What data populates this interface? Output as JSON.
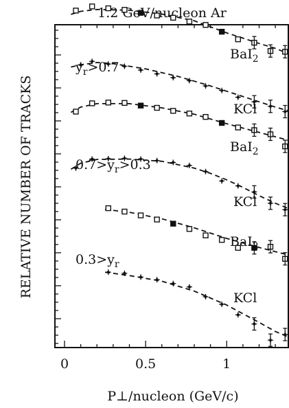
{
  "chart_data": {
    "type": "scatter",
    "title": "1.2 GeV/nucleon Ar",
    "xlabel": "P⊥/nucleon (GeV/c)",
    "ylabel": "RELATIVE NUMBER OF TRACKS",
    "xlim": [
      0,
      1.4
    ],
    "x_ticks": [
      "0",
      "0.5",
      "1"
    ],
    "x_tick_values": [
      0,
      0.5,
      1
    ],
    "y_scale": "log, relative, offset per series",
    "grid": false,
    "series": [
      {
        "name": "BaI2",
        "rapidity_cut": "yr>0.7",
        "marker": "square",
        "points": [
          {
            "x": 0.07,
            "y": 0.72
          },
          {
            "x": 0.17,
            "y": 0.83
          },
          {
            "x": 0.27,
            "y": 0.78
          },
          {
            "x": 0.37,
            "y": 0.74
          },
          {
            "x": 0.47,
            "y": 0.66
          },
          {
            "x": 0.57,
            "y": 0.59
          },
          {
            "x": 0.67,
            "y": 0.53
          },
          {
            "x": 0.77,
            "y": 0.43
          },
          {
            "x": 0.87,
            "y": 0.34
          },
          {
            "x": 0.97,
            "y": 0.16
          },
          {
            "x": 1.07,
            "y": -0.04
          },
          {
            "x": 1.17,
            "y": -0.13
          },
          {
            "x": 1.27,
            "y": -0.35
          },
          {
            "x": 1.36,
            "y": -0.37
          }
        ],
        "curve": [
          [
            0.04,
            0.62
          ],
          [
            0.1,
            0.7
          ],
          [
            0.2,
            0.75
          ],
          [
            0.4,
            0.73
          ],
          [
            0.6,
            0.63
          ],
          [
            0.8,
            0.45
          ],
          [
            1.0,
            0.13
          ],
          [
            1.1,
            -0.01
          ],
          [
            1.2,
            -0.15
          ],
          [
            1.3,
            -0.28
          ],
          [
            1.4,
            -0.45
          ]
        ]
      },
      {
        "name": "KCl",
        "rapidity_cut": "yr>0.7",
        "marker": "cross",
        "points": [
          {
            "x": 0.1,
            "y": 0.74
          },
          {
            "x": 0.17,
            "y": 0.83
          },
          {
            "x": 0.27,
            "y": 0.76
          },
          {
            "x": 0.37,
            "y": 0.7
          },
          {
            "x": 0.47,
            "y": 0.6
          },
          {
            "x": 0.57,
            "y": 0.5
          },
          {
            "x": 0.67,
            "y": 0.4
          },
          {
            "x": 0.77,
            "y": 0.32
          },
          {
            "x": 0.87,
            "y": 0.18
          },
          {
            "x": 0.97,
            "y": 0.06
          },
          {
            "x": 1.07,
            "y": -0.12
          },
          {
            "x": 1.17,
            "y": -0.24
          },
          {
            "x": 1.27,
            "y": -0.36
          },
          {
            "x": 1.36,
            "y": -0.5
          }
        ],
        "curve": [
          [
            0.04,
            0.68
          ],
          [
            0.1,
            0.74
          ],
          [
            0.2,
            0.8
          ],
          [
            0.3,
            0.77
          ],
          [
            0.5,
            0.63
          ],
          [
            0.7,
            0.43
          ],
          [
            0.9,
            0.18
          ],
          [
            1.0,
            0.04
          ],
          [
            1.1,
            -0.1
          ],
          [
            1.2,
            -0.24
          ],
          [
            1.3,
            -0.38
          ],
          [
            1.4,
            -0.5
          ]
        ]
      },
      {
        "name": "BaI2",
        "rapidity_cut": "0.7>yr>0.3",
        "marker": "square",
        "points": [
          {
            "x": 0.07,
            "y": 0.5
          },
          {
            "x": 0.17,
            "y": 0.72
          },
          {
            "x": 0.27,
            "y": 0.74
          },
          {
            "x": 0.37,
            "y": 0.73
          },
          {
            "x": 0.47,
            "y": 0.66
          },
          {
            "x": 0.57,
            "y": 0.6
          },
          {
            "x": 0.67,
            "y": 0.52
          },
          {
            "x": 0.77,
            "y": 0.45
          },
          {
            "x": 0.87,
            "y": 0.36
          },
          {
            "x": 0.97,
            "y": 0.2
          },
          {
            "x": 1.07,
            "y": 0.08
          },
          {
            "x": 1.17,
            "y": 0.01
          },
          {
            "x": 1.27,
            "y": -0.1
          },
          {
            "x": 1.36,
            "y": -0.42
          }
        ],
        "curve": [
          [
            0.04,
            0.48
          ],
          [
            0.1,
            0.62
          ],
          [
            0.2,
            0.71
          ],
          [
            0.4,
            0.71
          ],
          [
            0.6,
            0.6
          ],
          [
            0.8,
            0.43
          ],
          [
            1.0,
            0.18
          ],
          [
            1.2,
            -0.05
          ],
          [
            1.4,
            -0.28
          ]
        ]
      },
      {
        "name": "KCl",
        "rapidity_cut": "0.7>yr>0.3",
        "marker": "cross",
        "points": [
          {
            "x": 0.07,
            "y": 0.55
          },
          {
            "x": 0.17,
            "y": 0.79
          },
          {
            "x": 0.27,
            "y": 0.8
          },
          {
            "x": 0.37,
            "y": 0.81
          },
          {
            "x": 0.47,
            "y": 0.79
          },
          {
            "x": 0.57,
            "y": 0.75
          },
          {
            "x": 0.67,
            "y": 0.7
          },
          {
            "x": 0.77,
            "y": 0.62
          },
          {
            "x": 0.87,
            "y": 0.46
          },
          {
            "x": 0.97,
            "y": 0.21
          },
          {
            "x": 1.07,
            "y": 0.08
          },
          {
            "x": 1.17,
            "y": -0.08
          },
          {
            "x": 1.27,
            "y": -0.38
          },
          {
            "x": 1.36,
            "y": -0.55
          }
        ],
        "curve": [
          [
            0.04,
            0.52
          ],
          [
            0.1,
            0.68
          ],
          [
            0.2,
            0.78
          ],
          [
            0.4,
            0.79
          ],
          [
            0.6,
            0.73
          ],
          [
            0.8,
            0.55
          ],
          [
            0.9,
            0.41
          ],
          [
            1.0,
            0.24
          ],
          [
            1.1,
            0.04
          ],
          [
            1.2,
            -0.18
          ],
          [
            1.3,
            -0.38
          ],
          [
            1.4,
            -0.55
          ]
        ]
      },
      {
        "name": "BaI2",
        "rapidity_cut": "0.3>yr",
        "marker": "square",
        "points": [
          {
            "x": 0.27,
            "y": 0.58
          },
          {
            "x": 0.37,
            "y": 0.49
          },
          {
            "x": 0.47,
            "y": 0.39
          },
          {
            "x": 0.57,
            "y": 0.28
          },
          {
            "x": 0.67,
            "y": 0.17
          },
          {
            "x": 0.77,
            "y": 0.03
          },
          {
            "x": 0.87,
            "y": -0.14
          },
          {
            "x": 0.97,
            "y": -0.26
          },
          {
            "x": 1.07,
            "y": -0.47
          },
          {
            "x": 1.17,
            "y": -0.47
          },
          {
            "x": 1.27,
            "y": -0.44
          },
          {
            "x": 1.36,
            "y": -0.76
          }
        ],
        "curve": [
          [
            0.25,
            0.55
          ],
          [
            0.4,
            0.47
          ],
          [
            0.6,
            0.3
          ],
          [
            0.8,
            0.06
          ],
          [
            1.0,
            -0.22
          ],
          [
            1.2,
            -0.46
          ],
          [
            1.4,
            -0.68
          ]
        ]
      },
      {
        "name": "KCl",
        "rapidity_cut": "0.3>yr",
        "marker": "cross",
        "points": [
          {
            "x": 0.27,
            "y": 0.25
          },
          {
            "x": 0.37,
            "y": 0.22
          },
          {
            "x": 0.47,
            "y": 0.12
          },
          {
            "x": 0.57,
            "y": 0.05
          },
          {
            "x": 0.67,
            "y": -0.05
          },
          {
            "x": 0.77,
            "y": -0.14
          },
          {
            "x": 0.87,
            "y": -0.4
          },
          {
            "x": 0.97,
            "y": -0.6
          },
          {
            "x": 1.07,
            "y": -0.88
          },
          {
            "x": 1.17,
            "y": -1.12
          },
          {
            "x": 1.27,
            "y": -1.55
          },
          {
            "x": 1.36,
            "y": -1.4
          }
        ],
        "curve": [
          [
            0.25,
            0.25
          ],
          [
            0.4,
            0.16
          ],
          [
            0.6,
            0.01
          ],
          [
            0.8,
            -0.25
          ],
          [
            1.0,
            -0.62
          ],
          [
            1.2,
            -1.08
          ],
          [
            1.3,
            -1.32
          ],
          [
            1.4,
            -1.5
          ]
        ]
      }
    ],
    "annotations": [
      {
        "text": "BaI2"
      },
      {
        "text": "KCl"
      },
      {
        "text": "BaI2"
      },
      {
        "text": "KCl"
      },
      {
        "text": "BaI2"
      },
      {
        "text": "KCl"
      }
    ],
    "cut_labels": [
      "yr>0.7",
      "0.7>yr>0.3",
      "0.3>yr"
    ]
  }
}
